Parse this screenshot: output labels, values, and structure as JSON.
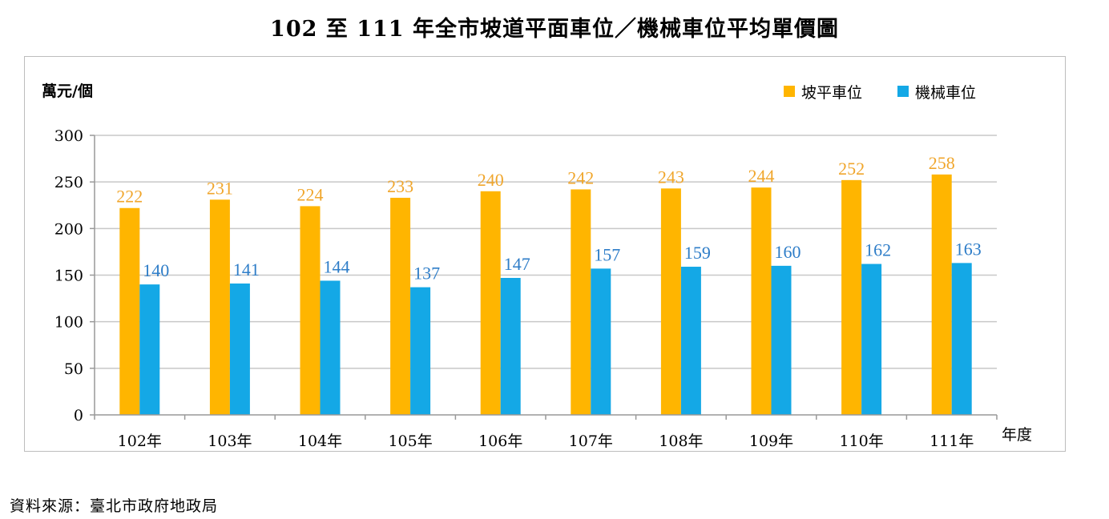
{
  "title": "102 至 111 年全市坡道平面車位／機械車位平均單價圖",
  "source": "資料來源：臺北市政府地政局",
  "colors": {
    "series_a": "#FFB500",
    "series_b": "#14A8E6",
    "label_a": "#F0A62C",
    "label_b": "#2E7DC8",
    "grid": "#c8c8c8"
  },
  "chart_data": {
    "type": "bar",
    "ylabel": "萬元/個",
    "xlabel": "年度",
    "ylim": [
      0,
      300
    ],
    "yticks": [
      0,
      50,
      100,
      150,
      200,
      250,
      300
    ],
    "grid": true,
    "legend_position": "top-right",
    "categories": [
      "102年",
      "103年",
      "104年",
      "105年",
      "106年",
      "107年",
      "108年",
      "109年",
      "110年",
      "111年"
    ],
    "series": [
      {
        "name": "坡平車位",
        "values": [
          222,
          231,
          224,
          233,
          240,
          242,
          243,
          244,
          252,
          258
        ]
      },
      {
        "name": "機械車位",
        "values": [
          140,
          141,
          144,
          137,
          147,
          157,
          159,
          160,
          162,
          163
        ]
      }
    ]
  }
}
